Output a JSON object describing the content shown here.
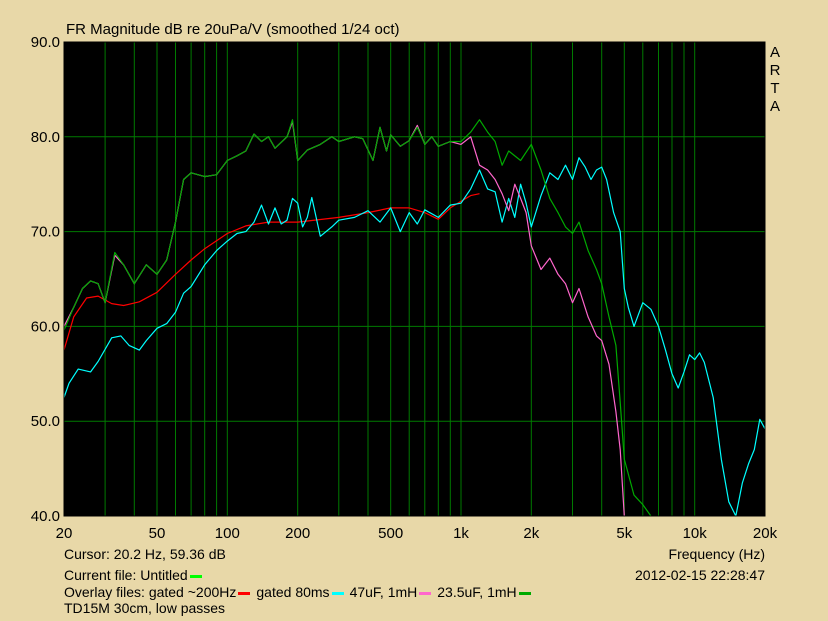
{
  "chart_data": {
    "type": "line",
    "title": "FR Magnitude dB re 20uPa/V (smoothed 1/24 oct)",
    "xlabel": "Frequency (Hz)",
    "ylabel": "",
    "x_scale": "log",
    "xlim": [
      20,
      20000
    ],
    "ylim": [
      40,
      90
    ],
    "grid": true,
    "x_ticks": [
      {
        "value": 20,
        "label": "20"
      },
      {
        "value": 50,
        "label": "50"
      },
      {
        "value": 100,
        "label": "100"
      },
      {
        "value": 200,
        "label": "200"
      },
      {
        "value": 500,
        "label": "500"
      },
      {
        "value": 1000,
        "label": "1k"
      },
      {
        "value": 2000,
        "label": "2k"
      },
      {
        "value": 5000,
        "label": "5k"
      },
      {
        "value": 10000,
        "label": "10k"
      },
      {
        "value": 20000,
        "label": "20k"
      }
    ],
    "y_ticks": [
      {
        "value": 40,
        "label": "40.0"
      },
      {
        "value": 50,
        "label": "50.0"
      },
      {
        "value": 60,
        "label": "60.0"
      },
      {
        "value": 70,
        "label": "70.0"
      },
      {
        "value": 80,
        "label": "80.0"
      },
      {
        "value": 90,
        "label": "90.0"
      }
    ],
    "series": [
      {
        "name": "gated ~200Hz",
        "color": "#ff0000",
        "points": [
          [
            20,
            57.5
          ],
          [
            22,
            61
          ],
          [
            25,
            63
          ],
          [
            28,
            63.2
          ],
          [
            32,
            62.4
          ],
          [
            36,
            62.2
          ],
          [
            42,
            62.6
          ],
          [
            50,
            63.6
          ],
          [
            60,
            65.5
          ],
          [
            70,
            67
          ],
          [
            80,
            68.2
          ],
          [
            100,
            69.8
          ],
          [
            120,
            70.6
          ],
          [
            150,
            71
          ],
          [
            200,
            71
          ],
          [
            300,
            71.5
          ],
          [
            400,
            72
          ],
          [
            500,
            72.5
          ],
          [
            600,
            72.5
          ],
          [
            700,
            72
          ],
          [
            800,
            71.3
          ],
          [
            900,
            72.5
          ],
          [
            1000,
            73.2
          ],
          [
            1100,
            73.8
          ],
          [
            1200,
            74
          ]
        ]
      },
      {
        "name": "gated 80ms",
        "color": "#00ffff",
        "points": [
          [
            20,
            52.5
          ],
          [
            21,
            54
          ],
          [
            23,
            55.5
          ],
          [
            26,
            55.2
          ],
          [
            28,
            56.3
          ],
          [
            32,
            58.8
          ],
          [
            35,
            59
          ],
          [
            38,
            58
          ],
          [
            42,
            57.5
          ],
          [
            45,
            58.5
          ],
          [
            50,
            59.8
          ],
          [
            55,
            60.3
          ],
          [
            60,
            61.5
          ],
          [
            65,
            63.5
          ],
          [
            70,
            64.2
          ],
          [
            80,
            66.5
          ],
          [
            90,
            68
          ],
          [
            100,
            69
          ],
          [
            110,
            69.8
          ],
          [
            120,
            70
          ],
          [
            130,
            71
          ],
          [
            140,
            72.8
          ],
          [
            150,
            70.8
          ],
          [
            160,
            72.5
          ],
          [
            170,
            70.8
          ],
          [
            180,
            71.2
          ],
          [
            190,
            73.5
          ],
          [
            200,
            73
          ],
          [
            210,
            70.5
          ],
          [
            220,
            71.5
          ],
          [
            230,
            73.6
          ],
          [
            250,
            69.5
          ],
          [
            280,
            70.5
          ],
          [
            300,
            71.2
          ],
          [
            350,
            71.5
          ],
          [
            400,
            72.2
          ],
          [
            450,
            71
          ],
          [
            500,
            72.5
          ],
          [
            550,
            70
          ],
          [
            600,
            72
          ],
          [
            650,
            70.8
          ],
          [
            700,
            72.3
          ],
          [
            800,
            71.5
          ],
          [
            900,
            72.8
          ],
          [
            1000,
            73
          ],
          [
            1100,
            74.5
          ],
          [
            1200,
            76.5
          ],
          [
            1300,
            74.5
          ],
          [
            1400,
            74.2
          ],
          [
            1500,
            71
          ],
          [
            1600,
            73.5
          ],
          [
            1700,
            71.5
          ],
          [
            1800,
            75
          ],
          [
            1900,
            73
          ],
          [
            2000,
            70.5
          ],
          [
            2200,
            73.8
          ],
          [
            2400,
            76.2
          ],
          [
            2600,
            75.5
          ],
          [
            2800,
            77
          ],
          [
            3000,
            75.5
          ],
          [
            3200,
            77.8
          ],
          [
            3400,
            76.8
          ],
          [
            3600,
            75.5
          ],
          [
            3800,
            76.5
          ],
          [
            4000,
            76.8
          ],
          [
            4200,
            75.5
          ],
          [
            4500,
            72
          ],
          [
            4800,
            70
          ],
          [
            5000,
            64
          ],
          [
            5200,
            62
          ],
          [
            5500,
            60
          ],
          [
            6000,
            62.5
          ],
          [
            6500,
            61.8
          ],
          [
            7000,
            60
          ],
          [
            7500,
            57.5
          ],
          [
            8000,
            55
          ],
          [
            8500,
            53.5
          ],
          [
            9000,
            55.2
          ],
          [
            9500,
            57
          ],
          [
            10000,
            56.5
          ],
          [
            10500,
            57.2
          ],
          [
            11000,
            56.2
          ],
          [
            12000,
            52.5
          ],
          [
            13000,
            46
          ],
          [
            14000,
            41.5
          ],
          [
            15000,
            40
          ],
          [
            16000,
            43.5
          ],
          [
            17000,
            45.5
          ],
          [
            18000,
            47
          ],
          [
            19000,
            50.2
          ],
          [
            20000,
            49.2
          ]
        ]
      },
      {
        "name": "47uF, 1mH",
        "color": "#ff66cc",
        "points": [
          [
            20,
            60
          ],
          [
            22,
            62
          ],
          [
            24,
            64
          ],
          [
            26,
            64.8
          ],
          [
            28,
            64.5
          ],
          [
            30,
            62.5
          ],
          [
            33,
            67.5
          ],
          [
            36,
            66.5
          ],
          [
            40,
            64.5
          ],
          [
            45,
            66.5
          ],
          [
            50,
            65.5
          ],
          [
            55,
            67
          ],
          [
            60,
            71
          ],
          [
            65,
            75.5
          ],
          [
            70,
            76.2
          ],
          [
            80,
            75.8
          ],
          [
            90,
            76
          ],
          [
            100,
            77.5
          ],
          [
            110,
            78
          ],
          [
            120,
            78.5
          ],
          [
            130,
            80.3
          ],
          [
            140,
            79.5
          ],
          [
            150,
            80
          ],
          [
            160,
            78.8
          ],
          [
            180,
            80
          ],
          [
            190,
            81.6
          ],
          [
            200,
            77.5
          ],
          [
            220,
            78.6
          ],
          [
            250,
            79.2
          ],
          [
            280,
            80
          ],
          [
            300,
            79.5
          ],
          [
            350,
            80
          ],
          [
            380,
            79.8
          ],
          [
            420,
            77.5
          ],
          [
            450,
            81
          ],
          [
            480,
            78.5
          ],
          [
            500,
            80.2
          ],
          [
            550,
            79
          ],
          [
            600,
            79.6
          ],
          [
            650,
            81.2
          ],
          [
            700,
            79.2
          ],
          [
            750,
            80
          ],
          [
            800,
            79
          ],
          [
            900,
            79.5
          ],
          [
            1000,
            79.2
          ],
          [
            1100,
            80
          ],
          [
            1200,
            77
          ],
          [
            1300,
            76.5
          ],
          [
            1400,
            75.5
          ],
          [
            1500,
            74
          ],
          [
            1600,
            72.2
          ],
          [
            1700,
            75
          ],
          [
            1800,
            73.5
          ],
          [
            1900,
            72
          ],
          [
            2000,
            68.5
          ],
          [
            2200,
            66
          ],
          [
            2400,
            67.2
          ],
          [
            2600,
            65.5
          ],
          [
            2800,
            64.5
          ],
          [
            3000,
            62.5
          ],
          [
            3200,
            64
          ],
          [
            3500,
            61
          ],
          [
            3800,
            59
          ],
          [
            4000,
            58.5
          ],
          [
            4300,
            56
          ],
          [
            4600,
            51
          ],
          [
            4800,
            47
          ],
          [
            5000,
            40
          ]
        ]
      },
      {
        "name": "23.5uF, 1mH",
        "color": "#00aa00",
        "points": [
          [
            20,
            59.6
          ],
          [
            22,
            62
          ],
          [
            24,
            64
          ],
          [
            26,
            64.8
          ],
          [
            28,
            64.5
          ],
          [
            30,
            62.5
          ],
          [
            33,
            67.8
          ],
          [
            36,
            66.5
          ],
          [
            40,
            64.5
          ],
          [
            45,
            66.5
          ],
          [
            50,
            65.5
          ],
          [
            55,
            67
          ],
          [
            60,
            71
          ],
          [
            65,
            75.5
          ],
          [
            70,
            76.2
          ],
          [
            80,
            75.8
          ],
          [
            90,
            76
          ],
          [
            100,
            77.5
          ],
          [
            110,
            78
          ],
          [
            120,
            78.5
          ],
          [
            130,
            80.3
          ],
          [
            140,
            79.5
          ],
          [
            150,
            80
          ],
          [
            160,
            78.8
          ],
          [
            180,
            80
          ],
          [
            190,
            81.8
          ],
          [
            200,
            77.5
          ],
          [
            220,
            78.6
          ],
          [
            250,
            79.2
          ],
          [
            280,
            80
          ],
          [
            300,
            79.5
          ],
          [
            350,
            80
          ],
          [
            380,
            79.8
          ],
          [
            420,
            77.5
          ],
          [
            450,
            81
          ],
          [
            480,
            78.5
          ],
          [
            500,
            80.2
          ],
          [
            550,
            79
          ],
          [
            600,
            79.6
          ],
          [
            650,
            81
          ],
          [
            700,
            79.2
          ],
          [
            750,
            80
          ],
          [
            800,
            79
          ],
          [
            900,
            79.5
          ],
          [
            1000,
            79.5
          ],
          [
            1100,
            80.5
          ],
          [
            1200,
            81.8
          ],
          [
            1300,
            80.5
          ],
          [
            1400,
            79.5
          ],
          [
            1500,
            77
          ],
          [
            1600,
            78.5
          ],
          [
            1800,
            77.5
          ],
          [
            2000,
            79.2
          ],
          [
            2200,
            76.5
          ],
          [
            2400,
            73.5
          ],
          [
            2600,
            72
          ],
          [
            2800,
            70.5
          ],
          [
            3000,
            69.8
          ],
          [
            3200,
            71
          ],
          [
            3500,
            68
          ],
          [
            3800,
            66
          ],
          [
            4000,
            64.5
          ],
          [
            4300,
            61
          ],
          [
            4600,
            58
          ],
          [
            4800,
            52
          ],
          [
            5000,
            46
          ],
          [
            5500,
            42.2
          ],
          [
            6000,
            41.2
          ],
          [
            6500,
            40
          ]
        ]
      }
    ]
  },
  "readouts": {
    "cursor": "Cursor: 20.2 Hz, 59.36 dB",
    "frequency_label": "Frequency (Hz)",
    "current_file": "Current file: Untitled",
    "datetime": "2012-02-15  22:28:47",
    "overlay_prefix": "Overlay files: ",
    "overlays": [
      {
        "label": "gated ~200Hz",
        "color": "#ff0000"
      },
      {
        "label": "gated 80ms",
        "color": "#00ffff"
      },
      {
        "label": "47uF, 1mH",
        "color": "#ff66cc"
      },
      {
        "label": "23.5uF, 1mH",
        "color": "#00aa00"
      }
    ],
    "current_color": "#00ff00",
    "note": "TD15M 30cm, low passes"
  },
  "brand": [
    "A",
    "R",
    "T",
    "A"
  ],
  "colors": {
    "plot_background": "#000000",
    "grid": "#007a00",
    "frame": "#e8d8a8"
  }
}
